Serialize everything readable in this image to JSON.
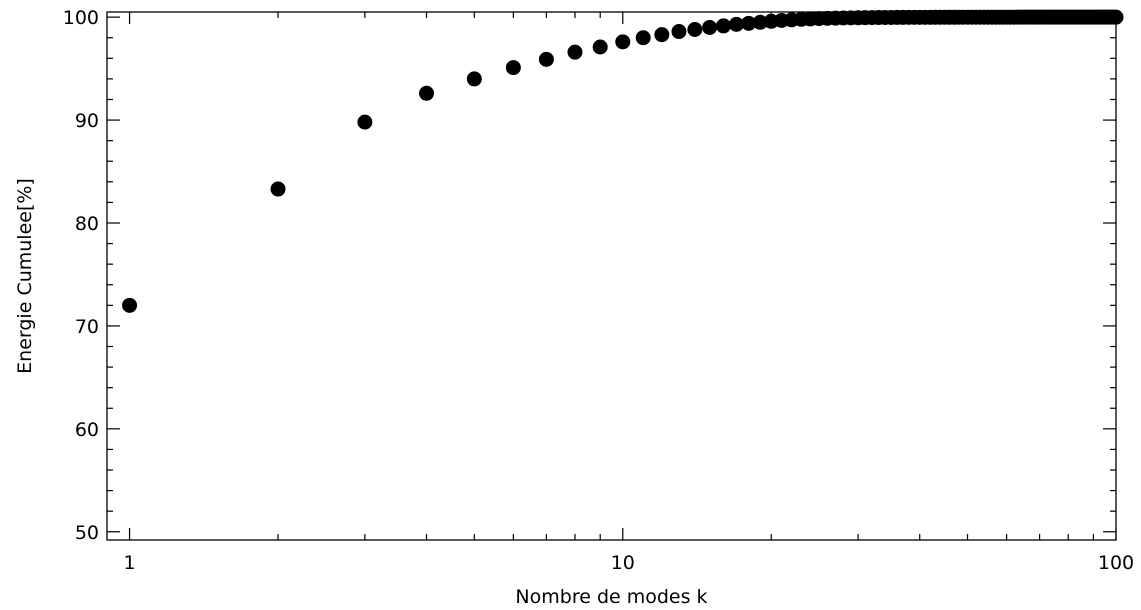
{
  "chart_data": {
    "type": "scatter",
    "title": "",
    "xlabel": "Nombre de modes k",
    "ylabel": "Energie Cumulee[%]",
    "xscale": "log",
    "xlim": [
      0.9,
      100
    ],
    "ylim": [
      49.2,
      100.5
    ],
    "x_tick_labels": [
      "1",
      "10",
      "100"
    ],
    "y_tick_labels": [
      "50",
      "60",
      "70",
      "80",
      "90",
      "100"
    ],
    "grid": false,
    "marker": "filled-circle",
    "marker_color": "#000000",
    "series": [
      {
        "x": [
          1,
          2,
          3,
          4,
          5,
          6,
          7,
          8,
          9,
          10,
          11,
          12,
          13,
          14,
          15,
          16,
          17,
          18,
          19,
          20,
          21,
          22,
          23,
          24,
          25,
          26,
          27,
          28,
          29,
          30,
          31,
          32,
          33,
          34,
          35,
          36,
          37,
          38,
          39,
          40,
          41,
          42,
          43,
          44,
          45,
          46,
          47,
          48,
          49,
          50,
          51,
          52,
          53,
          54,
          55,
          56,
          57,
          58,
          59,
          60,
          61,
          62,
          63,
          64,
          65,
          66,
          67,
          68,
          69,
          70,
          71,
          72,
          73,
          74,
          75,
          76,
          77,
          78,
          79,
          80,
          81,
          82,
          83,
          84,
          85,
          86,
          87,
          88,
          89,
          90,
          91,
          92,
          93,
          94,
          95,
          96,
          97,
          98,
          99,
          100
        ],
        "y": [
          72.0,
          83.3,
          89.8,
          92.6,
          94.0,
          95.1,
          95.9,
          96.6,
          97.1,
          97.6,
          98.0,
          98.3,
          98.6,
          98.8,
          99.0,
          99.15,
          99.3,
          99.4,
          99.5,
          99.6,
          99.68,
          99.74,
          99.79,
          99.83,
          99.86,
          99.88,
          99.9,
          99.92,
          99.93,
          99.94,
          99.95,
          99.955,
          99.96,
          99.965,
          99.97,
          99.972,
          99.975,
          99.977,
          99.979,
          99.98,
          99.982,
          99.983,
          99.984,
          99.985,
          99.986,
          99.987,
          99.988,
          99.989,
          99.99,
          99.99,
          99.991,
          99.991,
          99.992,
          99.992,
          99.993,
          99.993,
          99.994,
          99.994,
          99.994,
          99.995,
          99.995,
          99.995,
          99.996,
          99.996,
          99.996,
          99.996,
          99.997,
          99.997,
          99.997,
          99.997,
          99.997,
          99.998,
          99.998,
          99.998,
          99.998,
          99.998,
          99.998,
          99.998,
          99.999,
          99.999,
          99.999,
          99.999,
          99.999,
          99.999,
          99.999,
          99.999,
          99.999,
          99.999,
          99.999,
          99.999,
          100.0,
          100.0,
          100.0,
          100.0,
          100.0,
          100.0,
          100.0,
          100.0,
          100.0,
          100.0
        ]
      }
    ]
  }
}
